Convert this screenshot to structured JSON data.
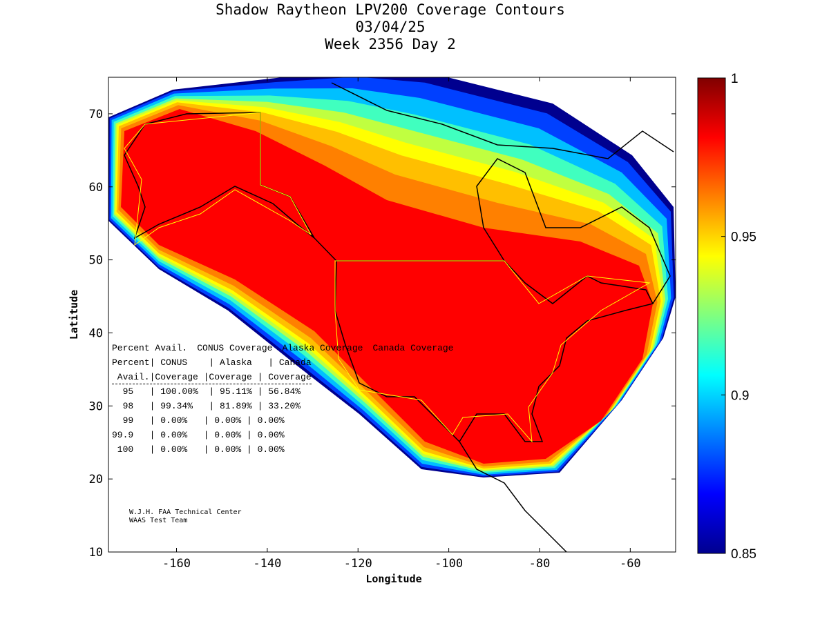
{
  "title": [
    "Shadow Raytheon LPV200 Coverage Contours",
    "03/04/25",
    "Week 2356 Day 2"
  ],
  "chart_data": {
    "type": "heatmap",
    "title": "Shadow Raytheon LPV200 Coverage Contours",
    "subtitle": [
      "03/04/25",
      "Week 2356 Day 2"
    ],
    "xlabel": "Longitude",
    "ylabel": "Latitude",
    "xlim": [
      -175,
      -50
    ],
    "ylim": [
      10,
      75
    ],
    "xticks": [
      -160,
      -140,
      -120,
      -100,
      -80,
      -60
    ],
    "yticks": [
      10,
      20,
      30,
      40,
      50,
      60,
      70
    ],
    "colorbar": {
      "range": [
        0.85,
        1
      ],
      "ticks": [
        0.85,
        0.9,
        0.95,
        1
      ],
      "tick_labels": [
        "0.85",
        "0.9",
        "0.95",
        "1"
      ],
      "colormap": "jet"
    },
    "contour_levels": [
      0.85,
      0.87,
      0.9,
      0.92,
      0.94,
      0.95,
      0.96,
      0.98,
      1.0
    ],
    "contour_colors": [
      "#00008f",
      "#0040ff",
      "#00c0ff",
      "#40ffbf",
      "#c0ff40",
      "#ffff00",
      "#ffbf00",
      "#ff8000",
      "#ff0000"
    ]
  },
  "table": {
    "header1": "Percent| CONUS    | Alaska   | Canada",
    "header2": " Avail.|Coverage |Coverage | Coverage",
    "columns": [
      "Percent Avail.",
      "CONUS Coverage",
      "Alaska Coverage",
      "Canada Coverage"
    ],
    "rows": [
      [
        "95",
        "100.00%",
        "95.11%",
        "56.84%"
      ],
      [
        "98",
        "99.34%",
        "81.89%",
        "33.20%"
      ],
      [
        "99",
        "0.00%",
        "0.00%",
        "0.00%"
      ],
      [
        "99.9",
        "0.00%",
        "0.00%",
        "0.00%"
      ],
      [
        "100",
        "0.00%",
        "0.00%",
        "0.00%"
      ]
    ],
    "row_text": [
      "  95   | 100.00%  | 95.11% | 56.84%",
      "  98   | 99.34%   | 81.89% | 33.20%",
      "  99   | 0.00%   | 0.00% | 0.00%",
      "99.9   | 0.00%   | 0.00% | 0.00%",
      " 100   | 0.00%   | 0.00% | 0.00%"
    ]
  },
  "credits": [
    "W.J.H. FAA Technical Center",
    "WAAS Test Team"
  ]
}
